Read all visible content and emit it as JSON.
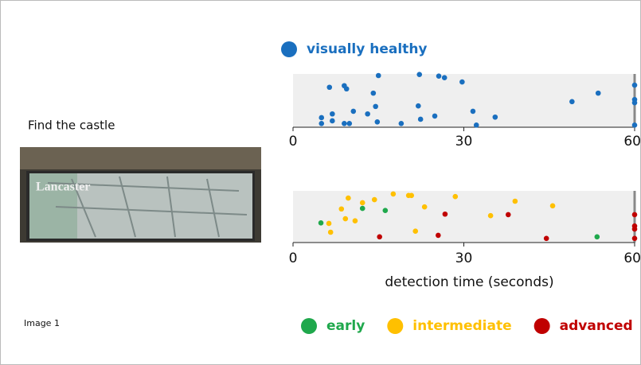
{
  "prompt": "Find the castle",
  "caption": "Image 1",
  "chart_data": [
    {
      "type": "scatter",
      "xlim": [
        0,
        60
      ],
      "xticks": [
        0,
        30,
        60
      ],
      "ylim": [
        0,
        1
      ],
      "series": [
        {
          "name": "visually healthy",
          "color": "#1a6fbf",
          "x": [
            6.4,
            9.0,
            9.4,
            15.0,
            22.2,
            25.6,
            26.6,
            29.7,
            14.1,
            6.9,
            10.6,
            14.5,
            13.1,
            22.0,
            31.6,
            5.0,
            5.0,
            6.9,
            9.0,
            9.9,
            14.8,
            19.0,
            22.4,
            24.9,
            32.2,
            35.5,
            49.0,
            53.6,
            60,
            60,
            60,
            60
          ],
          "values": [
            0.75,
            0.78,
            0.72,
            0.97,
            0.99,
            0.96,
            0.93,
            0.85,
            0.64,
            0.25,
            0.3,
            0.39,
            0.25,
            0.4,
            0.3,
            0.18,
            0.07,
            0.12,
            0.07,
            0.07,
            0.1,
            0.07,
            0.15,
            0.21,
            0.04,
            0.19,
            0.48,
            0.64,
            0.79,
            0.52,
            0.46,
            0.04
          ]
        }
      ]
    },
    {
      "type": "scatter",
      "xlim": [
        0,
        60
      ],
      "xticks": [
        0,
        30,
        60
      ],
      "ylim": [
        0,
        1
      ],
      "xlabel": "detection time (seconds)",
      "series": [
        {
          "name": "early",
          "color": "#1fa84c",
          "x": [
            4.9,
            12.2,
            16.2,
            53.4
          ],
          "values": [
            0.38,
            0.66,
            0.62,
            0.11
          ]
        },
        {
          "name": "intermediate",
          "color": "#ffc000",
          "x": [
            9.7,
            12.2,
            17.6,
            20.3,
            20.8,
            14.3,
            8.5,
            9.2,
            6.3,
            6.6,
            10.9,
            23.1,
            28.5,
            21.5,
            34.7,
            39.0,
            45.6
          ],
          "values": [
            0.86,
            0.77,
            0.94,
            0.91,
            0.91,
            0.83,
            0.65,
            0.46,
            0.37,
            0.2,
            0.42,
            0.69,
            0.89,
            0.22,
            0.52,
            0.8,
            0.71
          ]
        },
        {
          "name": "advanced",
          "color": "#c00000",
          "x": [
            26.7,
            37.8,
            15.2,
            25.5,
            44.5,
            60,
            60,
            60,
            60
          ],
          "values": [
            0.55,
            0.54,
            0.11,
            0.14,
            0.08,
            0.54,
            0.32,
            0.26,
            0.08
          ]
        }
      ]
    }
  ]
}
